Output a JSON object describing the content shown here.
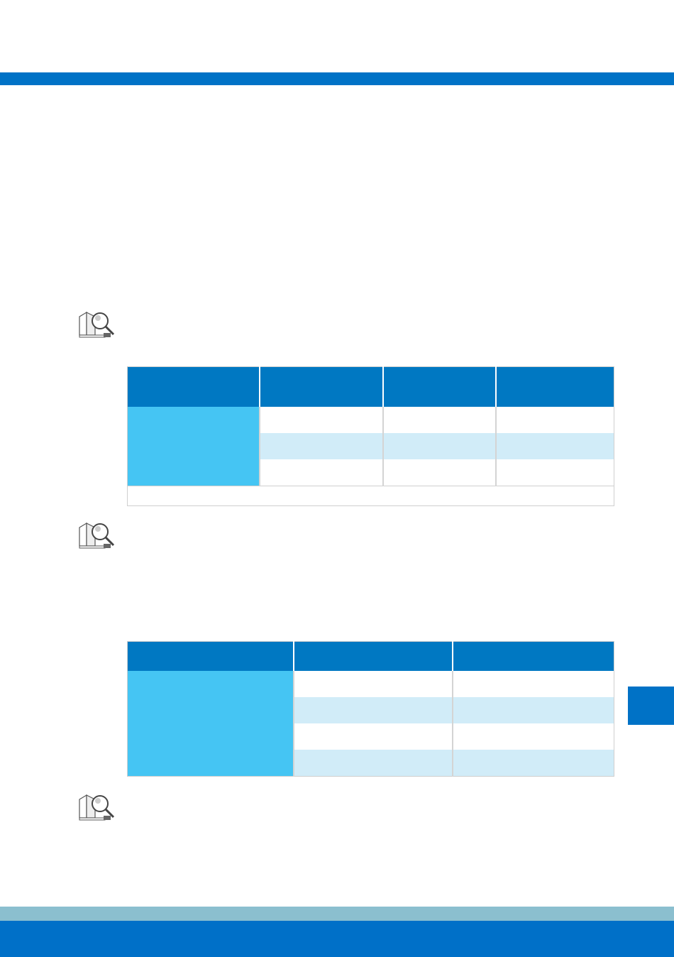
{
  "colors": {
    "accent": "#0072c6",
    "header_cell": "#0078c2",
    "row_header": "#45c5f3",
    "row_alt": "#d1ecf8",
    "footer_strip": "#8bbfcf"
  },
  "icons": {
    "note": "magnifier-document-icon"
  },
  "table1": {
    "headers": [
      "",
      "",
      "",
      ""
    ],
    "rows": [
      [
        "",
        "",
        "",
        ""
      ],
      [
        "",
        "",
        "",
        ""
      ],
      [
        "",
        "",
        "",
        ""
      ]
    ],
    "footnote": ""
  },
  "table2": {
    "headers": [
      "",
      "",
      ""
    ],
    "rows": [
      [
        "",
        "",
        ""
      ],
      [
        "",
        "",
        ""
      ],
      [
        "",
        "",
        ""
      ],
      [
        "",
        "",
        ""
      ]
    ]
  }
}
